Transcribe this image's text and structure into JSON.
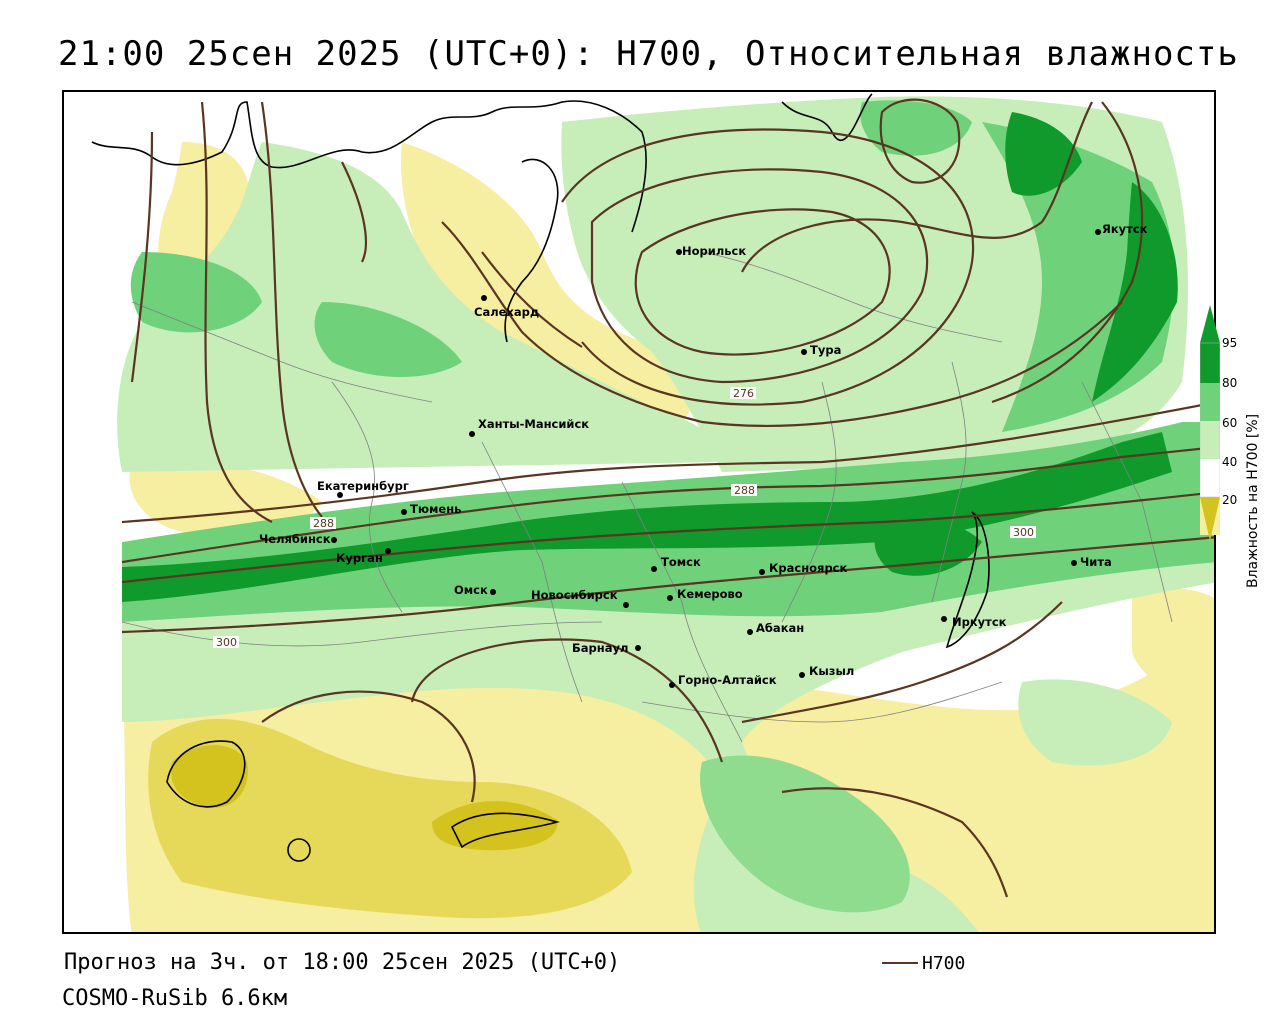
{
  "title": "21:00 25сен 2025 (UTC+0): H700, Относительная влажность",
  "footer": {
    "forecast": "Прогноз на 3ч. от 18:00 25сен 2025 (UTC+0)",
    "model": "COSMO-RuSib 6.6км"
  },
  "legend": {
    "line_label": "H700",
    "line_color": "#5a3522"
  },
  "colorbar": {
    "title": "Влажность на H700 [%]",
    "ticks": [
      "95",
      "80",
      "60",
      "40",
      "20"
    ],
    "colors": {
      "dry": "#d4c21f",
      "dryish": "#f6eea0",
      "neutral": "#ffffff",
      "moist": "#c7eeb9",
      "wet": "#6fd27a",
      "saturated": "#0f9a2b"
    }
  },
  "isolines": {
    "labels": [
      "276",
      "288",
      "288",
      "300",
      "300"
    ]
  },
  "cities": [
    {
      "name": "Норильск"
    },
    {
      "name": "Якутск"
    },
    {
      "name": "Салехард"
    },
    {
      "name": "Тура"
    },
    {
      "name": "Ханты-Мансийск"
    },
    {
      "name": "Екатеринбург"
    },
    {
      "name": "Тюмень"
    },
    {
      "name": "Челябинск"
    },
    {
      "name": "Курган"
    },
    {
      "name": "Омск"
    },
    {
      "name": "Новосибирск"
    },
    {
      "name": "Томск"
    },
    {
      "name": "Кемерово"
    },
    {
      "name": "Красноярск"
    },
    {
      "name": "Барнаул"
    },
    {
      "name": "Абакан"
    },
    {
      "name": "Горно-Алтайск"
    },
    {
      "name": "Кызыл"
    },
    {
      "name": "Иркутск"
    },
    {
      "name": "Чита"
    }
  ]
}
